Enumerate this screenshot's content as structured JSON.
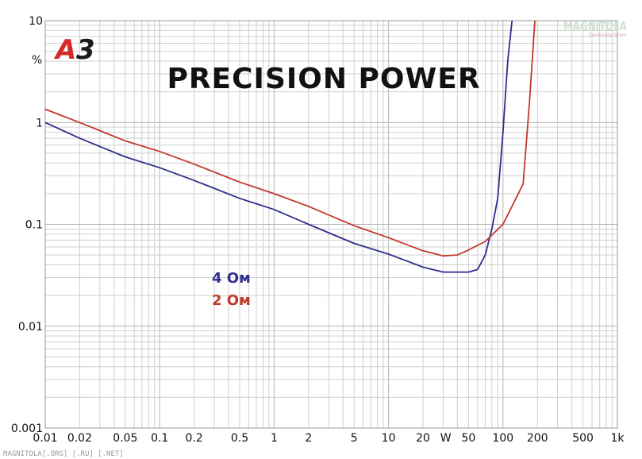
{
  "logo": {
    "text_a": "A",
    "text_3": "3"
  },
  "watermark": {
    "bottom": "MAGNITOLA[.ORG] [.RU] [.NET]",
    "corner": "MAGNITOLA",
    "corner_sub": "Cerbinato Team"
  },
  "colors": {
    "series_4ohm": "#2e2e8e",
    "series_2ohm": "#c0392b",
    "logo_red": "#d42a2a",
    "logo_dark": "#1a1a1a"
  },
  "chart_data": {
    "type": "line",
    "title": "PRECISION POWER",
    "xlabel": "W",
    "ylabel": "%",
    "x_scale": "log",
    "y_scale": "log",
    "xlim": [
      0.01,
      1000
    ],
    "ylim": [
      0.001,
      10
    ],
    "grid": true,
    "x_tick_labels": [
      {
        "v": 0.01,
        "t": "0.01"
      },
      {
        "v": 0.02,
        "t": "0.02"
      },
      {
        "v": 0.05,
        "t": "0.05"
      },
      {
        "v": 0.1,
        "t": "0.1"
      },
      {
        "v": 0.2,
        "t": "0.2"
      },
      {
        "v": 0.5,
        "t": "0.5"
      },
      {
        "v": 1,
        "t": "1"
      },
      {
        "v": 2,
        "t": "2"
      },
      {
        "v": 5,
        "t": "5"
      },
      {
        "v": 10,
        "t": "10"
      },
      {
        "v": 20,
        "t": "20"
      },
      {
        "v": 50,
        "t": "50"
      },
      {
        "v": 100,
        "t": "100"
      },
      {
        "v": 200,
        "t": "200"
      },
      {
        "v": 500,
        "t": "500"
      },
      {
        "v": 1000,
        "t": "1k"
      }
    ],
    "y_tick_labels": [
      {
        "v": 10,
        "t": "10"
      },
      {
        "v": 1,
        "t": "1"
      },
      {
        "v": 0.1,
        "t": "0.1"
      },
      {
        "v": 0.01,
        "t": "0.01"
      },
      {
        "v": 0.001,
        "t": "0.001"
      }
    ],
    "legend_position": "middle-left",
    "series": [
      {
        "name": "4 Ом",
        "color": "#2e2e8e",
        "points": [
          [
            0.01,
            1.0
          ],
          [
            0.02,
            0.7
          ],
          [
            0.05,
            0.46
          ],
          [
            0.1,
            0.36
          ],
          [
            0.2,
            0.27
          ],
          [
            0.5,
            0.18
          ],
          [
            1,
            0.14
          ],
          [
            2,
            0.1
          ],
          [
            5,
            0.065
          ],
          [
            10,
            0.051
          ],
          [
            20,
            0.038
          ],
          [
            30,
            0.034
          ],
          [
            50,
            0.034
          ],
          [
            60,
            0.036
          ],
          [
            70,
            0.05
          ],
          [
            80,
            0.09
          ],
          [
            90,
            0.18
          ],
          [
            100,
            0.8
          ],
          [
            110,
            4.0
          ],
          [
            120,
            10.0
          ]
        ]
      },
      {
        "name": "2 Ом",
        "color": "#c0392b",
        "points": [
          [
            0.01,
            1.35
          ],
          [
            0.02,
            1.0
          ],
          [
            0.05,
            0.66
          ],
          [
            0.1,
            0.52
          ],
          [
            0.2,
            0.39
          ],
          [
            0.5,
            0.26
          ],
          [
            1,
            0.2
          ],
          [
            2,
            0.15
          ],
          [
            5,
            0.097
          ],
          [
            10,
            0.074
          ],
          [
            20,
            0.055
          ],
          [
            30,
            0.049
          ],
          [
            40,
            0.05
          ],
          [
            50,
            0.056
          ],
          [
            70,
            0.068
          ],
          [
            100,
            0.1
          ],
          [
            130,
            0.18
          ],
          [
            150,
            0.25
          ],
          [
            170,
            1.5
          ],
          [
            190,
            10.0
          ]
        ]
      }
    ]
  }
}
